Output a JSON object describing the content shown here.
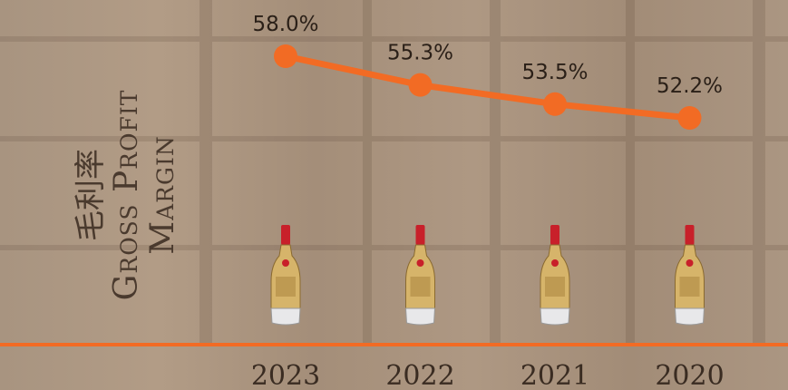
{
  "chart_data": {
    "type": "line",
    "ylabel_cn": "毛利率",
    "ylabel": "Gross Profit Margin",
    "categories": [
      "2023",
      "2022",
      "2021",
      "2020"
    ],
    "values": [
      58.0,
      55.3,
      53.5,
      52.2
    ],
    "value_labels": [
      "58.0%",
      "55.3%",
      "53.5%",
      "52.2%"
    ],
    "color": "#f26b24"
  }
}
